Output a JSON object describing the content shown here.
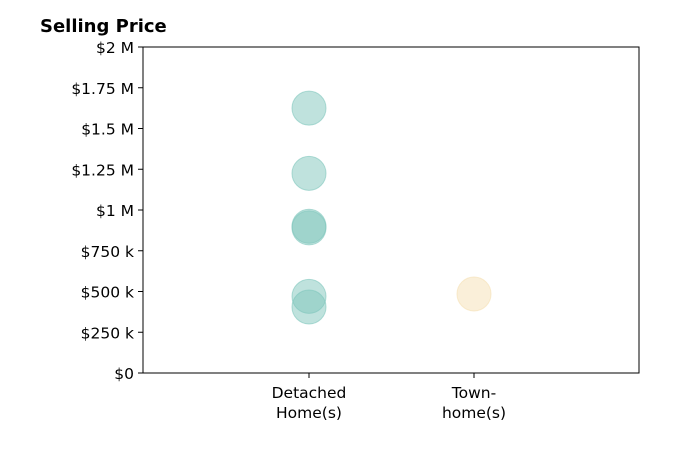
{
  "chart_data": {
    "type": "scatter",
    "title": "Selling Price",
    "categories": [
      "Detached\nHome(s)",
      "Town-\nhome(s)"
    ],
    "ylim": [
      0,
      2000000
    ],
    "yticks": [
      {
        "value": 0,
        "label": "$0"
      },
      {
        "value": 250000,
        "label": "$250 k"
      },
      {
        "value": 500000,
        "label": "$500 k"
      },
      {
        "value": 750000,
        "label": "$750 k"
      },
      {
        "value": 1000000,
        "label": "$1 M"
      },
      {
        "value": 1250000,
        "label": "$1.25 M"
      },
      {
        "value": 1500000,
        "label": "$1.5 M"
      },
      {
        "value": 1750000,
        "label": "$1.75 M"
      },
      {
        "value": 2000000,
        "label": "$2 M"
      }
    ],
    "grid": false,
    "series": [
      {
        "category": "Detached\nHome(s)",
        "color": "#7fc6bc",
        "values": [
          1625000,
          1225000,
          900000,
          890000,
          470000,
          405000
        ]
      },
      {
        "category": "Town-\nhome(s)",
        "color": "#f5dfb3",
        "values": [
          485000
        ]
      }
    ]
  }
}
